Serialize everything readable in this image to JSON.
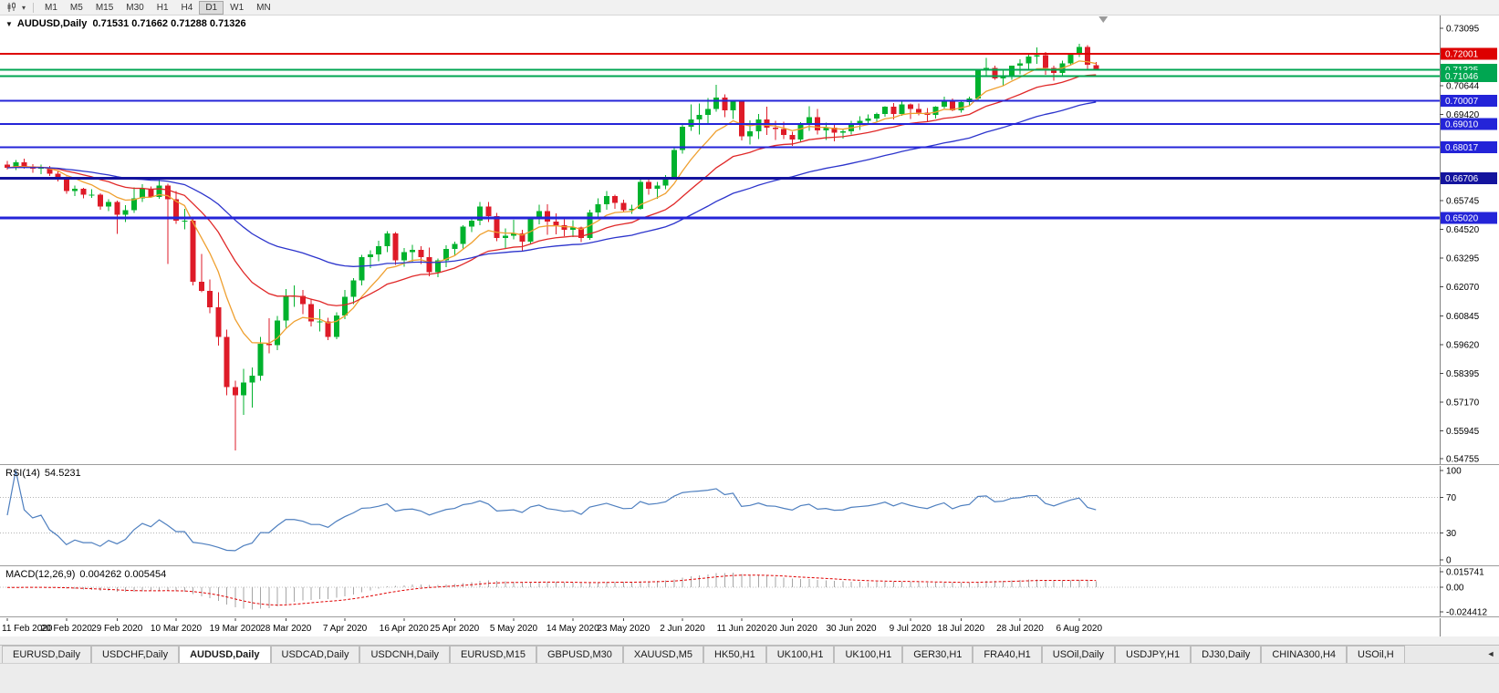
{
  "colors": {
    "bull": "#00b22d",
    "bear": "#de1b28",
    "rsi_line": "#4e7fbf",
    "macd_hist": "#a6a6a6",
    "macd_signal": "#e00000",
    "axis_line": "#808080",
    "tick_text": "#000000"
  },
  "toolbar": {
    "timeframes": [
      "M1",
      "M5",
      "M15",
      "M30",
      "H1",
      "H4",
      "D1",
      "W1",
      "MN"
    ],
    "active": "D1",
    "dropdown_glyph": "▾"
  },
  "chart": {
    "menu_glyph": "▼",
    "header": "AUDUSD,Daily  0.71531 0.71662 0.71288 0.71326",
    "rsi_name": "RSI(14)",
    "rsi_value": "54.5231",
    "macd_name": "MACD(12,26,9)",
    "macd_value": "0.004262 0.005454"
  },
  "chart_data": {
    "type": "candlestick",
    "symbol": "AUDUSD",
    "period": "Daily",
    "ohlc_display": {
      "open": "0.71531",
      "high": "0.71662",
      "low": "0.71288",
      "close": "0.71326"
    },
    "y_axis": {
      "min": 0.54755,
      "max": 0.73095,
      "ticks": [
        "0.73095",
        "0.70644",
        "0.69420",
        "0.65745",
        "0.64520",
        "0.63295",
        "0.62070",
        "0.60845",
        "0.59620",
        "0.58395",
        "0.57170",
        "0.55945",
        "0.54755"
      ]
    },
    "x_axis": {
      "labels": [
        {
          "i": 0,
          "t": "11 Feb 2020"
        },
        {
          "i": 7,
          "t": "20 Feb 2020"
        },
        {
          "i": 13,
          "t": "29 Feb 2020"
        },
        {
          "i": 20,
          "t": "10 Mar 2020"
        },
        {
          "i": 27,
          "t": "19 Mar 2020"
        },
        {
          "i": 33,
          "t": "28 Mar 2020"
        },
        {
          "i": 40,
          "t": "7 Apr 2020"
        },
        {
          "i": 47,
          "t": "16 Apr 2020"
        },
        {
          "i": 53,
          "t": "25 Apr 2020"
        },
        {
          "i": 60,
          "t": "5 May 2020"
        },
        {
          "i": 67,
          "t": "14 May 2020"
        },
        {
          "i": 73,
          "t": "23 May 2020"
        },
        {
          "i": 80,
          "t": "2 Jun 2020"
        },
        {
          "i": 87,
          "t": "11 Jun 2020"
        },
        {
          "i": 93,
          "t": "20 Jun 2020"
        },
        {
          "i": 100,
          "t": "30 Jun 2020"
        },
        {
          "i": 107,
          "t": "9 Jul 2020"
        },
        {
          "i": 113,
          "t": "18 Jul 2020"
        },
        {
          "i": 120,
          "t": "28 Jul 2020"
        },
        {
          "i": 127,
          "t": "6 Aug 2020"
        }
      ]
    },
    "hlines": [
      {
        "price": 0.72001,
        "label": "0.72001",
        "color": "#dd0000",
        "width": 2
      },
      {
        "price": 0.71325,
        "label": "0.71325",
        "color": "#00a651",
        "width": 2
      },
      {
        "price": 0.71046,
        "label": "0.71046",
        "color": "#00a651",
        "width": 2
      },
      {
        "price": 0.70007,
        "label": "0.70007",
        "color": "#2424d8",
        "width": 2
      },
      {
        "price": 0.6901,
        "label": "0.69010",
        "color": "#2424d8",
        "width": 2
      },
      {
        "price": 0.68017,
        "label": "0.68017",
        "color": "#2424d8",
        "width": 2
      },
      {
        "price": 0.66706,
        "label": "0.66706",
        "color": "#14149e",
        "width": 3
      },
      {
        "price": 0.6502,
        "label": "0.65020",
        "color": "#2424d8",
        "width": 3
      }
    ],
    "moving_averages": [
      {
        "period": 8,
        "method": "ema",
        "color": "#efa030"
      },
      {
        "period": 20,
        "method": "ema",
        "color": "#e02828"
      },
      {
        "period": 45,
        "method": "ema",
        "color": "#2c34cc"
      }
    ],
    "rsi": {
      "period": 14,
      "current": 54.5231,
      "levels": [
        70,
        30
      ],
      "range": [
        0,
        100
      ],
      "scale_ticks": [
        "100",
        "70",
        "30",
        "0"
      ]
    },
    "macd": {
      "fast": 12,
      "slow": 26,
      "signal": 9,
      "current_macd": 0.004262,
      "current_signal": 0.005454,
      "scale": {
        "max": 0.015741,
        "min": -0.024412
      },
      "ticks": {
        "top": "0.015741",
        "zero": "0.00",
        "bottom": "-0.024412"
      }
    },
    "candles": [
      [
        0.6729,
        0.6745,
        0.6708,
        0.6715
      ],
      [
        0.6715,
        0.6749,
        0.6706,
        0.6738
      ],
      [
        0.6738,
        0.6754,
        0.6711,
        0.672
      ],
      [
        0.672,
        0.6731,
        0.6693,
        0.6712
      ],
      [
        0.6712,
        0.6728,
        0.6687,
        0.6715
      ],
      [
        0.6715,
        0.6722,
        0.668,
        0.669
      ],
      [
        0.669,
        0.6701,
        0.6657,
        0.667
      ],
      [
        0.667,
        0.6678,
        0.6605,
        0.6615
      ],
      [
        0.6615,
        0.6639,
        0.6595,
        0.6625
      ],
      [
        0.6625,
        0.663,
        0.6584,
        0.66
      ],
      [
        0.66,
        0.6623,
        0.6587,
        0.66
      ],
      [
        0.66,
        0.6606,
        0.6537,
        0.655
      ],
      [
        0.655,
        0.6581,
        0.653,
        0.657
      ],
      [
        0.657,
        0.6576,
        0.6434,
        0.6515
      ],
      [
        0.6515,
        0.6556,
        0.6484,
        0.6535
      ],
      [
        0.6535,
        0.6632,
        0.6523,
        0.6585
      ],
      [
        0.6585,
        0.6645,
        0.657,
        0.6625
      ],
      [
        0.6625,
        0.6636,
        0.6587,
        0.659
      ],
      [
        0.659,
        0.667,
        0.6583,
        0.664
      ],
      [
        0.664,
        0.6647,
        0.6305,
        0.658
      ],
      [
        0.658,
        0.6615,
        0.6477,
        0.649
      ],
      [
        0.649,
        0.654,
        0.6452,
        0.649
      ],
      [
        0.649,
        0.6495,
        0.6213,
        0.623
      ],
      [
        0.623,
        0.6348,
        0.6185,
        0.619
      ],
      [
        0.619,
        0.6239,
        0.6095,
        0.612
      ],
      [
        0.612,
        0.6185,
        0.5958,
        0.5995
      ],
      [
        0.5995,
        0.6025,
        0.5745,
        0.578
      ],
      [
        0.578,
        0.5807,
        0.551,
        0.5745
      ],
      [
        0.5745,
        0.5858,
        0.5662,
        0.58
      ],
      [
        0.58,
        0.5865,
        0.5694,
        0.583
      ],
      [
        0.583,
        0.5994,
        0.5808,
        0.5965
      ],
      [
        0.5965,
        0.6074,
        0.5925,
        0.596
      ],
      [
        0.596,
        0.6084,
        0.5937,
        0.6065
      ],
      [
        0.6065,
        0.6198,
        0.6034,
        0.617
      ],
      [
        0.617,
        0.6213,
        0.6122,
        0.617
      ],
      [
        0.617,
        0.6195,
        0.6091,
        0.6135
      ],
      [
        0.6135,
        0.6157,
        0.6038,
        0.606
      ],
      [
        0.606,
        0.6112,
        0.6018,
        0.606
      ],
      [
        0.606,
        0.6075,
        0.598,
        0.5995
      ],
      [
        0.5995,
        0.61,
        0.5985,
        0.6085
      ],
      [
        0.6085,
        0.6195,
        0.607,
        0.6165
      ],
      [
        0.6165,
        0.6245,
        0.6135,
        0.6235
      ],
      [
        0.6235,
        0.6343,
        0.6213,
        0.6335
      ],
      [
        0.6335,
        0.6363,
        0.6287,
        0.6345
      ],
      [
        0.6345,
        0.6404,
        0.6317,
        0.638
      ],
      [
        0.638,
        0.6445,
        0.6355,
        0.6435
      ],
      [
        0.6435,
        0.6442,
        0.6301,
        0.632
      ],
      [
        0.632,
        0.6374,
        0.6294,
        0.6355
      ],
      [
        0.6355,
        0.6386,
        0.6315,
        0.6365
      ],
      [
        0.6365,
        0.6381,
        0.6305,
        0.6335
      ],
      [
        0.6335,
        0.6375,
        0.6253,
        0.627
      ],
      [
        0.627,
        0.6329,
        0.6248,
        0.632
      ],
      [
        0.632,
        0.6385,
        0.6291,
        0.637
      ],
      [
        0.637,
        0.64,
        0.634,
        0.639
      ],
      [
        0.639,
        0.647,
        0.6372,
        0.6465
      ],
      [
        0.6465,
        0.6506,
        0.6442,
        0.649
      ],
      [
        0.649,
        0.657,
        0.647,
        0.655
      ],
      [
        0.655,
        0.6569,
        0.6483,
        0.651
      ],
      [
        0.651,
        0.6523,
        0.6403,
        0.6415
      ],
      [
        0.6415,
        0.6456,
        0.6372,
        0.6425
      ],
      [
        0.6425,
        0.6494,
        0.641,
        0.6435
      ],
      [
        0.6435,
        0.645,
        0.6359,
        0.64
      ],
      [
        0.64,
        0.6504,
        0.6388,
        0.6495
      ],
      [
        0.6495,
        0.6557,
        0.6475,
        0.653
      ],
      [
        0.653,
        0.656,
        0.643,
        0.6485
      ],
      [
        0.6485,
        0.652,
        0.6431,
        0.647
      ],
      [
        0.647,
        0.6505,
        0.6423,
        0.645
      ],
      [
        0.645,
        0.6491,
        0.642,
        0.646
      ],
      [
        0.646,
        0.6465,
        0.6398,
        0.6415
      ],
      [
        0.6415,
        0.6537,
        0.6409,
        0.6525
      ],
      [
        0.6525,
        0.6585,
        0.6507,
        0.656
      ],
      [
        0.656,
        0.6616,
        0.6536,
        0.6595
      ],
      [
        0.6595,
        0.6601,
        0.6541,
        0.6565
      ],
      [
        0.6565,
        0.6579,
        0.6524,
        0.6535
      ],
      [
        0.6535,
        0.6558,
        0.6519,
        0.654
      ],
      [
        0.654,
        0.6675,
        0.6537,
        0.6655
      ],
      [
        0.6655,
        0.6676,
        0.6601,
        0.6625
      ],
      [
        0.6625,
        0.6655,
        0.6583,
        0.664
      ],
      [
        0.664,
        0.6683,
        0.6624,
        0.667
      ],
      [
        0.667,
        0.6806,
        0.6664,
        0.679
      ],
      [
        0.679,
        0.6904,
        0.6776,
        0.689
      ],
      [
        0.689,
        0.6985,
        0.6872,
        0.692
      ],
      [
        0.692,
        0.6988,
        0.6856,
        0.694
      ],
      [
        0.694,
        0.7013,
        0.6901,
        0.6965
      ],
      [
        0.6965,
        0.7068,
        0.6954,
        0.7015
      ],
      [
        0.7015,
        0.7028,
        0.6931,
        0.696
      ],
      [
        0.696,
        0.7003,
        0.6922,
        0.6999
      ],
      [
        0.6999,
        0.7005,
        0.6832,
        0.685
      ],
      [
        0.685,
        0.6918,
        0.6815,
        0.687
      ],
      [
        0.687,
        0.6944,
        0.6837,
        0.692
      ],
      [
        0.692,
        0.6976,
        0.6855,
        0.6885
      ],
      [
        0.6885,
        0.6915,
        0.6834,
        0.688
      ],
      [
        0.688,
        0.6911,
        0.6837,
        0.6855
      ],
      [
        0.6855,
        0.6869,
        0.6809,
        0.6835
      ],
      [
        0.6835,
        0.691,
        0.6826,
        0.6905
      ],
      [
        0.6905,
        0.6977,
        0.6872,
        0.693
      ],
      [
        0.693,
        0.6966,
        0.6857,
        0.6875
      ],
      [
        0.6875,
        0.6907,
        0.6833,
        0.6885
      ],
      [
        0.6885,
        0.6904,
        0.6827,
        0.6865
      ],
      [
        0.6865,
        0.6879,
        0.684,
        0.687
      ],
      [
        0.687,
        0.6915,
        0.6856,
        0.6905
      ],
      [
        0.6905,
        0.6934,
        0.6877,
        0.6915
      ],
      [
        0.6915,
        0.6943,
        0.6899,
        0.6925
      ],
      [
        0.6925,
        0.695,
        0.691,
        0.6945
      ],
      [
        0.6945,
        0.6977,
        0.6933,
        0.6975
      ],
      [
        0.6975,
        0.699,
        0.6921,
        0.6945
      ],
      [
        0.6945,
        0.7001,
        0.6937,
        0.6985
      ],
      [
        0.6985,
        0.6989,
        0.6923,
        0.6965
      ],
      [
        0.6965,
        0.6988,
        0.6939,
        0.695
      ],
      [
        0.695,
        0.697,
        0.6913,
        0.694
      ],
      [
        0.694,
        0.6977,
        0.6925,
        0.6975
      ],
      [
        0.6975,
        0.7019,
        0.6967,
        0.7005
      ],
      [
        0.7005,
        0.701,
        0.6955,
        0.696
      ],
      [
        0.696,
        0.7,
        0.6951,
        0.6995
      ],
      [
        0.6995,
        0.7018,
        0.6981,
        0.701
      ],
      [
        0.701,
        0.7134,
        0.7001,
        0.713
      ],
      [
        0.713,
        0.7183,
        0.7109,
        0.714
      ],
      [
        0.714,
        0.715,
        0.7089,
        0.7095
      ],
      [
        0.7095,
        0.7128,
        0.7063,
        0.7105
      ],
      [
        0.7105,
        0.715,
        0.709,
        0.715
      ],
      [
        0.715,
        0.7177,
        0.7113,
        0.716
      ],
      [
        0.716,
        0.7197,
        0.7135,
        0.719
      ],
      [
        0.719,
        0.7227,
        0.7158,
        0.7195
      ],
      [
        0.7195,
        0.7208,
        0.7111,
        0.714
      ],
      [
        0.714,
        0.715,
        0.7087,
        0.712
      ],
      [
        0.712,
        0.7171,
        0.7109,
        0.716
      ],
      [
        0.716,
        0.72,
        0.715,
        0.72
      ],
      [
        0.72,
        0.7243,
        0.7188,
        0.723
      ],
      [
        0.723,
        0.7237,
        0.7135,
        0.7155
      ],
      [
        0.71531,
        0.71662,
        0.71288,
        0.71326
      ]
    ]
  },
  "tabbar": {
    "tabs": [
      "EURUSD,Daily",
      "USDCHF,Daily",
      "AUDUSD,Daily",
      "USDCAD,Daily",
      "USDCNH,Daily",
      "EURUSD,M15",
      "GBPUSD,M30",
      "XAUUSD,M5",
      "HK50,H1",
      "UK100,H1",
      "UK100,H1",
      "GER30,H1",
      "FRA40,H1",
      "USOil,Daily",
      "USDJPY,H1",
      "DJ30,Daily",
      "CHINA300,H4",
      "USOil,H"
    ],
    "active_index": 2,
    "scroll_left_glyph": "◄"
  }
}
